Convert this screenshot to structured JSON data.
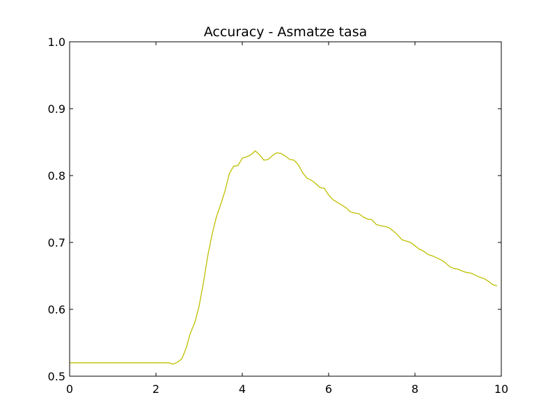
{
  "chart_data": {
    "type": "line",
    "title": "Accuracy - Asmatze tasa",
    "xlabel": "",
    "ylabel": "",
    "xlim": [
      0,
      10
    ],
    "ylim": [
      0.5,
      1.0
    ],
    "x_ticks": [
      0,
      2,
      4,
      6,
      8,
      10
    ],
    "x_tick_labels": [
      "0",
      "2",
      "4",
      "6",
      "8",
      "10"
    ],
    "y_ticks": [
      0.5,
      0.6,
      0.7,
      0.8,
      0.9,
      1.0
    ],
    "y_tick_labels": [
      "0.5",
      "0.6",
      "0.7",
      "0.8",
      "0.9",
      "1.0"
    ],
    "grid": false,
    "legend": "none",
    "series": [
      {
        "color": "#bfbf00",
        "x": [
          0.0,
          0.1,
          0.2,
          0.3,
          0.4,
          0.5,
          0.6,
          0.7,
          0.8,
          0.9,
          1.0,
          1.1,
          1.2,
          1.3,
          1.4,
          1.5,
          1.6,
          1.7,
          1.8,
          1.9,
          2.0,
          2.1,
          2.2,
          2.3,
          2.4,
          2.5,
          2.6,
          2.7,
          2.8,
          2.9,
          3.0,
          3.1,
          3.2,
          3.3,
          3.4,
          3.5,
          3.6,
          3.7,
          3.8,
          3.9,
          4.0,
          4.1,
          4.2,
          4.3,
          4.4,
          4.5,
          4.6,
          4.7,
          4.8,
          4.9,
          5.0,
          5.1,
          5.2,
          5.3,
          5.4,
          5.5,
          5.6,
          5.7,
          5.8,
          5.9,
          6.0,
          6.1,
          6.2,
          6.3,
          6.4,
          6.5,
          6.6,
          6.7,
          6.8,
          6.9,
          7.0,
          7.1,
          7.2,
          7.3,
          7.4,
          7.5,
          7.6,
          7.7,
          7.8,
          7.9,
          8.0,
          8.1,
          8.2,
          8.3,
          8.4,
          8.5,
          8.6,
          8.7,
          8.8,
          8.9,
          9.0,
          9.1,
          9.2,
          9.3,
          9.4,
          9.5,
          9.6,
          9.7,
          9.8,
          9.9
        ],
        "y": [
          0.52,
          0.52,
          0.52,
          0.52,
          0.52,
          0.52,
          0.52,
          0.52,
          0.52,
          0.52,
          0.52,
          0.52,
          0.52,
          0.52,
          0.52,
          0.52,
          0.52,
          0.52,
          0.52,
          0.52,
          0.52,
          0.52,
          0.52,
          0.52,
          0.518,
          0.521,
          0.526,
          0.542,
          0.565,
          0.58,
          0.605,
          0.64,
          0.68,
          0.712,
          0.738,
          0.757,
          0.777,
          0.803,
          0.814,
          0.815,
          0.826,
          0.828,
          0.831,
          0.837,
          0.831,
          0.823,
          0.824,
          0.83,
          0.834,
          0.833,
          0.829,
          0.824,
          0.823,
          0.816,
          0.804,
          0.796,
          0.793,
          0.788,
          0.782,
          0.781,
          0.771,
          0.764,
          0.76,
          0.756,
          0.752,
          0.746,
          0.744,
          0.743,
          0.738,
          0.735,
          0.734,
          0.727,
          0.725,
          0.724,
          0.722,
          0.717,
          0.711,
          0.704,
          0.702,
          0.7,
          0.695,
          0.69,
          0.687,
          0.682,
          0.68,
          0.677,
          0.674,
          0.67,
          0.664,
          0.661,
          0.66,
          0.657,
          0.655,
          0.654,
          0.651,
          0.648,
          0.646,
          0.642,
          0.637,
          0.635
        ]
      }
    ]
  }
}
